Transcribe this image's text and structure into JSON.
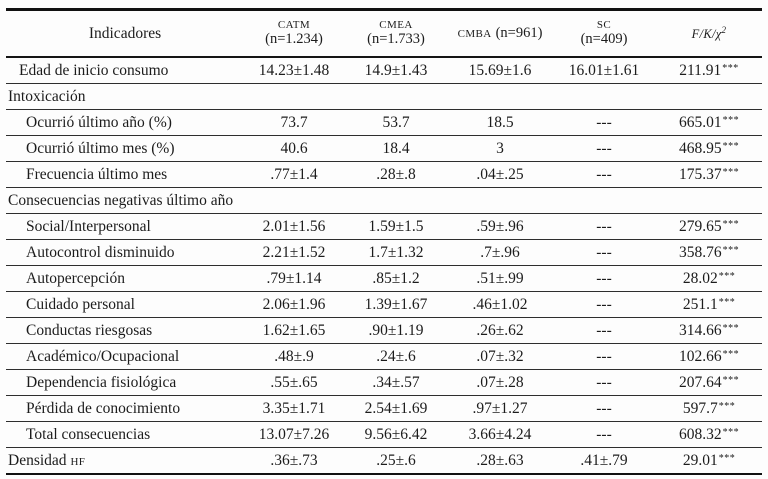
{
  "table": {
    "header": {
      "indicator_label": "Indicadores",
      "columns": [
        {
          "acronym": "CATM",
          "n": "(n=1.234)",
          "two_line": true
        },
        {
          "acronym": "CMEA",
          "n": "(n=1.733)",
          "two_line": true
        },
        {
          "acronym": "CMBA",
          "n": "(n=961)",
          "two_line": false
        },
        {
          "acronym": "SC",
          "n": "(n=409)",
          "two_line": true
        }
      ],
      "stat_label": {
        "text": "F/K/χ",
        "sup": "2"
      }
    },
    "rows": [
      {
        "label": "Edad de inicio consumo",
        "indent": 1,
        "values": [
          "14.23±1.48",
          "14.9±1.43",
          "15.69±1.6",
          "16.01±1.61"
        ],
        "stat": "211.91",
        "stars": "***"
      },
      {
        "label": "Intoxicación",
        "section": true
      },
      {
        "label": "Ocurrió último año (%)",
        "indent": 2,
        "values": [
          "73.7",
          "53.7",
          "18.5",
          "---"
        ],
        "stat": "665.01",
        "stars": "***"
      },
      {
        "label": "Ocurrió último mes (%)",
        "indent": 2,
        "values": [
          "40.6",
          "18.4",
          "3",
          "---"
        ],
        "stat": "468.95",
        "stars": "***"
      },
      {
        "label": "Frecuencia último mes",
        "indent": 2,
        "values": [
          ".77±1.4",
          ".28±.8",
          ".04±.25",
          "---"
        ],
        "stat": "175.37",
        "stars": "***"
      },
      {
        "label": "Consecuencias negativas último año",
        "section": true
      },
      {
        "label": "Social/Interpersonal",
        "indent": 2,
        "values": [
          "2.01±1.56",
          "1.59±1.5",
          ".59±.96",
          "---"
        ],
        "stat": "279.65",
        "stars": "***"
      },
      {
        "label": "Autocontrol disminuido",
        "indent": 2,
        "values": [
          "2.21±1.52",
          "1.7±1.32",
          ".7±.96",
          "---"
        ],
        "stat": "358.76",
        "stars": "***"
      },
      {
        "label": "Autopercepción",
        "indent": 2,
        "values": [
          ".79±1.14",
          ".85±1.2",
          ".51±.99",
          "---"
        ],
        "stat": "28.02",
        "stars": "***"
      },
      {
        "label": "Cuidado personal",
        "indent": 2,
        "values": [
          "2.06±1.96",
          "1.39±1.67",
          ".46±1.02",
          "---"
        ],
        "stat": "251.1",
        "stars": "***"
      },
      {
        "label": "Conductas riesgosas",
        "indent": 2,
        "values": [
          "1.62±1.65",
          ".90±1.19",
          ".26±.62",
          "---"
        ],
        "stat": "314.66",
        "stars": "***"
      },
      {
        "label": "Académico/Ocupacional",
        "indent": 2,
        "values": [
          ".48±.9",
          ".24±.6",
          ".07±.32",
          "---"
        ],
        "stat": "102.66",
        "stars": "***"
      },
      {
        "label": "Dependencia fisiológica",
        "indent": 2,
        "values": [
          ".55±.65",
          ".34±.57",
          ".07±.28",
          "---"
        ],
        "stat": "207.64",
        "stars": "***"
      },
      {
        "label": "Pérdida de conocimiento",
        "indent": 2,
        "values": [
          "3.35±1.71",
          "2.54±1.69",
          ".97±1.27",
          "---"
        ],
        "stat": "597.7",
        "stars": "***"
      },
      {
        "label": "Total consecuencias",
        "indent": 2,
        "values": [
          "13.07±7.26",
          "9.56±6.42",
          "3.66±4.24",
          "---"
        ],
        "stat": "608.32",
        "stars": "***"
      },
      {
        "label": "Densidad",
        "label_smallcaps": "HF",
        "indent": 0,
        "values": [
          ".36±.73",
          ".25±.6",
          ".28±.63",
          ".41±.79"
        ],
        "stat": "29.01",
        "stars": "***"
      }
    ]
  }
}
